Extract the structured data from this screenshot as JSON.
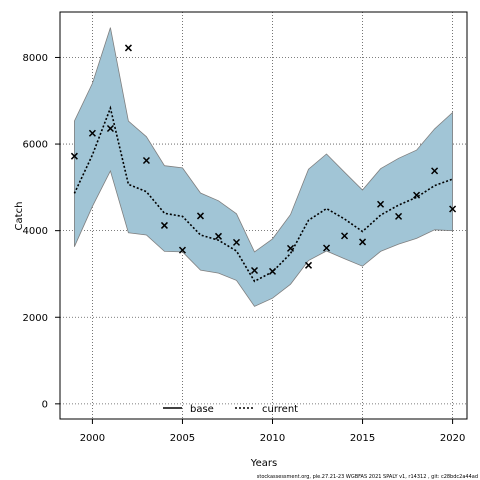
{
  "chart_data": {
    "type": "line",
    "xlabel": "Years",
    "ylabel": "Catch",
    "xlim": [
      1998.2,
      20.8
    ],
    "ylim": [
      -350,
      9050
    ],
    "x_ticks": [
      2000,
      2005,
      2010,
      2015,
      2020
    ],
    "y_ticks": [
      0,
      2000,
      4000,
      6000,
      8000
    ],
    "grid": true,
    "legend_position": "bottom-center",
    "years": [
      1999,
      2000,
      2001,
      2002,
      2003,
      2004,
      2005,
      2006,
      2007,
      2008,
      2009,
      2010,
      2011,
      2012,
      2013,
      2014,
      2015,
      2016,
      2017,
      2018,
      2019,
      2020
    ],
    "series": [
      {
        "name": "base",
        "values": [],
        "color": "#000000",
        "style": "solid"
      },
      {
        "name": "current",
        "values": [
          4860,
          5750,
          6830,
          5070,
          4900,
          4400,
          4330,
          3900,
          3780,
          3530,
          2830,
          3050,
          3470,
          4240,
          4510,
          4270,
          3980,
          4360,
          4590,
          4770,
          5040,
          5190
        ],
        "color": "#000000",
        "style": "dotted"
      }
    ],
    "band": {
      "upper": [
        6530,
        7400,
        8690,
        6530,
        6170,
        5500,
        5450,
        4870,
        4690,
        4390,
        3510,
        3810,
        4370,
        5420,
        5770,
        5350,
        4940,
        5430,
        5670,
        5860,
        6350,
        6730
      ],
      "lower": [
        3630,
        4560,
        5380,
        3950,
        3900,
        3520,
        3510,
        3090,
        3020,
        2850,
        2250,
        2440,
        2760,
        3310,
        3530,
        3350,
        3180,
        3520,
        3690,
        3820,
        4020,
        4000
      ],
      "fill": "#a1c5d6",
      "stroke": "#7f7f7f"
    },
    "observations": {
      "marker": "x",
      "values": [
        5720,
        6250,
        6360,
        8220,
        5620,
        4120,
        3550,
        4340,
        3870,
        3730,
        3080,
        3060,
        3590,
        3200,
        3600,
        3880,
        3740,
        4610,
        4330,
        4820,
        5380,
        4500
      ]
    }
  },
  "footer": {
    "text": "stockassessment.org, ple.27.21-23 WGBFAS 2021 SPALY v1, r14312 , git: c28bdc2a44ad"
  }
}
